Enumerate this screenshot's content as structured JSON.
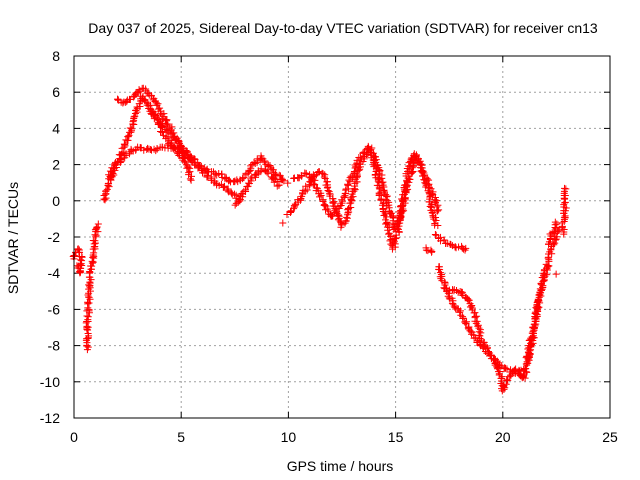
{
  "chart_data": {
    "type": "scatter",
    "title": "Day 037 of 2025, Sidereal Day-to-day VTEC variation (SDTVAR) for receiver cn13",
    "xlabel": "GPS time / hours",
    "ylabel": "SDTVAR / TECUs",
    "xlim": [
      0,
      25
    ],
    "ylim": [
      -12,
      8
    ],
    "x_ticks": [
      0,
      5,
      10,
      15,
      20,
      25
    ],
    "y_ticks": [
      -12,
      -10,
      -8,
      -6,
      -4,
      -2,
      0,
      2,
      4,
      6,
      8
    ],
    "grid": true,
    "marker": "+",
    "series": [
      {
        "name": "SDTVAR",
        "color": "#ff0000",
        "tracks": [
          [
            [
              0.0,
              -3.2
            ],
            [
              0.1,
              -2.8
            ],
            [
              0.2,
              -2.7
            ],
            [
              0.3,
              -3.0
            ],
            [
              0.35,
              -3.6
            ],
            [
              0.3,
              -4.0
            ],
            [
              0.2,
              -3.6
            ]
          ],
          [
            [
              0.6,
              -8.2
            ],
            [
              0.62,
              -7.4
            ],
            [
              0.65,
              -6.5
            ],
            [
              0.7,
              -5.5
            ],
            [
              0.75,
              -4.6
            ],
            [
              0.8,
              -3.8
            ],
            [
              0.88,
              -3.0
            ],
            [
              0.95,
              -2.3
            ],
            [
              1.05,
              -1.7
            ],
            [
              1.12,
              -1.3
            ]
          ],
          [
            [
              1.4,
              0.0
            ],
            [
              1.5,
              0.4
            ],
            [
              1.6,
              0.8
            ],
            [
              1.8,
              1.5
            ],
            [
              2.0,
              2.0
            ],
            [
              2.3,
              2.4
            ],
            [
              2.6,
              2.7
            ],
            [
              2.9,
              2.9
            ],
            [
              3.2,
              2.9
            ],
            [
              3.5,
              2.8
            ],
            [
              3.8,
              2.8
            ],
            [
              4.1,
              2.9
            ],
            [
              4.4,
              3.0
            ],
            [
              4.8,
              2.9
            ],
            [
              5.2,
              2.6
            ],
            [
              5.6,
              2.1
            ],
            [
              6.0,
              1.6
            ],
            [
              6.3,
              1.3
            ],
            [
              6.6,
              1.0
            ],
            [
              6.9,
              0.8
            ],
            [
              7.2,
              0.6
            ],
            [
              7.5,
              0.3
            ],
            [
              7.8,
              0.1
            ]
          ],
          [
            [
              1.6,
              1.2
            ],
            [
              1.9,
              1.9
            ],
            [
              2.2,
              2.6
            ],
            [
              2.5,
              3.5
            ],
            [
              2.8,
              4.4
            ],
            [
              3.0,
              5.2
            ],
            [
              3.2,
              5.8
            ],
            [
              3.5,
              5.2
            ],
            [
              3.8,
              4.6
            ],
            [
              4.1,
              4.2
            ],
            [
              4.4,
              3.8
            ],
            [
              4.7,
              3.4
            ],
            [
              5.0,
              3.0
            ],
            [
              5.3,
              2.7
            ],
            [
              5.6,
              2.3
            ]
          ],
          [
            [
              2.0,
              5.6
            ],
            [
              2.3,
              5.4
            ],
            [
              2.6,
              5.6
            ],
            [
              2.9,
              5.9
            ],
            [
              3.1,
              6.2
            ],
            [
              3.3,
              6.1
            ],
            [
              3.6,
              5.8
            ],
            [
              3.9,
              5.3
            ],
            [
              4.2,
              4.6
            ],
            [
              4.5,
              4.0
            ],
            [
              4.8,
              3.4
            ],
            [
              5.1,
              2.6
            ],
            [
              5.3,
              1.8
            ],
            [
              5.5,
              1.2
            ]
          ],
          [
            [
              3.6,
              4.9
            ],
            [
              3.9,
              4.4
            ],
            [
              4.1,
              3.9
            ],
            [
              4.3,
              3.5
            ],
            [
              4.6,
              3.0
            ],
            [
              4.9,
              2.6
            ],
            [
              5.1,
              2.2
            ]
          ],
          [
            [
              5.4,
              2.4
            ],
            [
              5.7,
              2.1
            ],
            [
              6.0,
              1.8
            ],
            [
              6.3,
              1.6
            ],
            [
              6.6,
              1.5
            ],
            [
              6.9,
              1.4
            ],
            [
              7.2,
              1.1
            ],
            [
              7.5,
              1.0
            ],
            [
              7.8,
              1.2
            ],
            [
              8.1,
              1.6
            ],
            [
              8.4,
              2.0
            ],
            [
              8.7,
              2.4
            ],
            [
              9.0,
              2.0
            ],
            [
              9.3,
              1.6
            ],
            [
              9.6,
              1.3
            ],
            [
              9.9,
              1.0
            ]
          ],
          [
            [
              7.5,
              -0.2
            ],
            [
              7.8,
              0.2
            ],
            [
              8.1,
              0.8
            ],
            [
              8.4,
              1.3
            ],
            [
              8.7,
              1.7
            ],
            [
              9.0,
              1.6
            ],
            [
              9.3,
              1.2
            ],
            [
              9.6,
              0.8
            ]
          ],
          [
            [
              9.7,
              -1.3
            ]
          ],
          [
            [
              10.0,
              -0.8
            ],
            [
              10.3,
              -0.3
            ],
            [
              10.6,
              0.2
            ],
            [
              10.9,
              0.8
            ],
            [
              11.2,
              1.4
            ],
            [
              11.5,
              1.6
            ],
            [
              11.7,
              1.3
            ],
            [
              11.9,
              0.6
            ],
            [
              12.1,
              -0.2
            ],
            [
              12.3,
              -0.8
            ],
            [
              12.5,
              -1.4
            ],
            [
              12.7,
              -1.0
            ],
            [
              12.9,
              -0.2
            ],
            [
              13.1,
              0.8
            ],
            [
              13.3,
              1.8
            ],
            [
              13.5,
              2.4
            ],
            [
              13.7,
              2.8
            ],
            [
              13.9,
              2.5
            ],
            [
              14.1,
              1.5
            ],
            [
              14.3,
              0.3
            ],
            [
              14.5,
              -0.8
            ],
            [
              14.7,
              -1.8
            ],
            [
              14.9,
              -2.6
            ],
            [
              15.1,
              -1.8
            ],
            [
              15.3,
              -0.2
            ],
            [
              15.5,
              1.2
            ],
            [
              15.7,
              2.2
            ],
            [
              15.9,
              2.6
            ],
            [
              16.1,
              2.2
            ],
            [
              16.3,
              1.4
            ],
            [
              16.5,
              0.6
            ],
            [
              16.7,
              -0.4
            ],
            [
              16.9,
              -1.4
            ]
          ],
          [
            [
              10.2,
              1.2
            ],
            [
              10.5,
              1.3
            ],
            [
              10.8,
              1.5
            ],
            [
              11.1,
              1.2
            ],
            [
              11.4,
              0.5
            ],
            [
              11.7,
              -0.3
            ],
            [
              12.0,
              -0.9
            ],
            [
              12.3,
              -0.5
            ],
            [
              12.6,
              0.3
            ],
            [
              12.9,
              1.2
            ],
            [
              13.2,
              2.0
            ],
            [
              13.5,
              2.7
            ],
            [
              13.8,
              3.0
            ],
            [
              14.1,
              2.2
            ],
            [
              14.4,
              1.0
            ],
            [
              14.7,
              -0.4
            ],
            [
              15.0,
              -1.6
            ],
            [
              15.3,
              -0.6
            ],
            [
              15.6,
              1.0
            ],
            [
              15.9,
              2.4
            ],
            [
              16.2,
              2.0
            ],
            [
              16.5,
              1.0
            ],
            [
              16.8,
              0.2
            ],
            [
              17.0,
              -0.6
            ]
          ],
          [
            [
              16.4,
              -2.6
            ],
            [
              16.7,
              -2.9
            ]
          ],
          [
            [
              16.9,
              -1.9
            ],
            [
              17.2,
              -2.2
            ],
            [
              17.5,
              -2.4
            ],
            [
              17.8,
              -2.5
            ],
            [
              18.1,
              -2.6
            ],
            [
              18.3,
              -2.7
            ]
          ],
          [
            [
              17.0,
              -3.6
            ],
            [
              17.2,
              -4.4
            ],
            [
              17.4,
              -5.0
            ],
            [
              17.7,
              -5.6
            ],
            [
              18.0,
              -6.2
            ],
            [
              18.3,
              -6.8
            ],
            [
              18.6,
              -7.4
            ],
            [
              18.9,
              -7.9
            ],
            [
              19.2,
              -8.3
            ],
            [
              19.5,
              -8.6
            ],
            [
              19.8,
              -9.0
            ],
            [
              20.1,
              -9.3
            ],
            [
              20.4,
              -9.4
            ],
            [
              20.7,
              -9.5
            ],
            [
              21.0,
              -9.2
            ]
          ],
          [
            [
              17.3,
              -4.8
            ],
            [
              17.6,
              -4.9
            ],
            [
              17.9,
              -5.0
            ],
            [
              18.2,
              -5.2
            ],
            [
              18.4,
              -5.4
            ],
            [
              18.6,
              -6.0
            ],
            [
              18.8,
              -6.8
            ],
            [
              19.0,
              -7.6
            ],
            [
              19.3,
              -8.3
            ],
            [
              19.6,
              -8.8
            ],
            [
              19.9,
              -9.6
            ],
            [
              20.0,
              -10.5
            ],
            [
              20.2,
              -9.9
            ],
            [
              20.5,
              -9.3
            ],
            [
              20.8,
              -9.6
            ],
            [
              21.0,
              -9.8
            ],
            [
              21.2,
              -8.8
            ],
            [
              21.4,
              -7.5
            ],
            [
              21.6,
              -6.0
            ],
            [
              21.8,
              -4.8
            ],
            [
              22.0,
              -3.8
            ],
            [
              22.2,
              -3.0
            ],
            [
              22.4,
              -2.2
            ],
            [
              22.6,
              -1.6
            ]
          ],
          [
            [
              21.1,
              -9.0
            ],
            [
              21.3,
              -7.8
            ],
            [
              21.5,
              -6.6
            ],
            [
              21.7,
              -5.4
            ],
            [
              21.9,
              -4.4
            ],
            [
              22.1,
              -3.6
            ]
          ],
          [
            [
              22.1,
              -2.4
            ],
            [
              22.3,
              -1.8
            ],
            [
              22.5,
              -1.2
            ]
          ],
          [
            [
              22.5,
              -4.1
            ]
          ],
          [
            [
              22.8,
              -1.8
            ],
            [
              22.85,
              -1.0
            ],
            [
              22.9,
              -0.4
            ],
            [
              22.9,
              0.2
            ],
            [
              22.95,
              0.7
            ]
          ]
        ]
      }
    ]
  }
}
